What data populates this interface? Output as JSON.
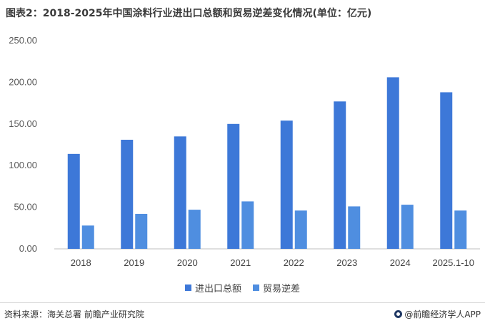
{
  "title": "图表2：2018-2025年中国涂料行业进出口总额和贸易逆差变化情况(单位：亿元)",
  "footer": {
    "source": "资料来源：海关总署 前瞻产业研究院",
    "brand": "@前瞻经济学人APP"
  },
  "colors": {
    "series_total": "#3d78d8",
    "series_deficit": "#4f8ee0",
    "grid": "#e8e8e8"
  },
  "chart_data": {
    "type": "bar",
    "title": "图表2：2018-2025年中国涂料行业进出口总额和贸易逆差变化情况(单位：亿元)",
    "categories": [
      "2018",
      "2019",
      "2020",
      "2021",
      "2022",
      "2023",
      "2024",
      "2025.1-10"
    ],
    "series": [
      {
        "name": "进出口总额",
        "values": [
          114,
          131,
          135,
          150,
          154,
          177,
          206,
          188
        ]
      },
      {
        "name": "贸易逆差",
        "values": [
          28,
          42,
          47,
          57,
          46,
          51,
          53,
          46
        ]
      }
    ],
    "yticks": [
      "0.00",
      "50.00",
      "100.00",
      "150.00",
      "200.00",
      "250.00"
    ],
    "ylim": [
      0,
      250
    ],
    "grid": false,
    "legend_position": "bottom"
  }
}
